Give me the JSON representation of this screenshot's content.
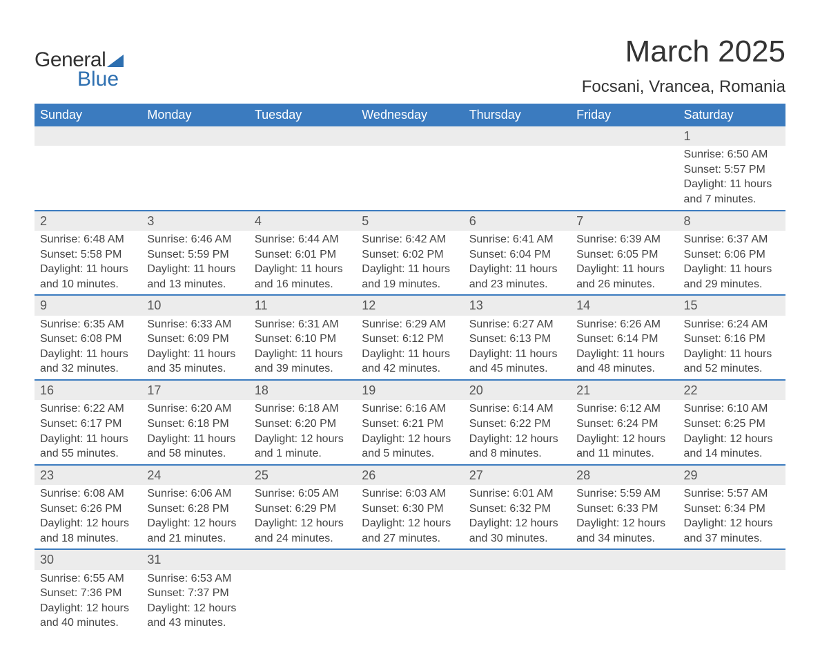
{
  "brand": {
    "word1": "General",
    "word2": "Blue"
  },
  "title": "March 2025",
  "location": "Focsani, Vrancea, Romania",
  "colors": {
    "header_bg": "#3b7bbf",
    "header_text": "#ffffff",
    "daynum_bg": "#ececec",
    "border": "#3b7bbf",
    "text": "#444444",
    "brand_blue": "#2d6fb0"
  },
  "day_headers": [
    "Sunday",
    "Monday",
    "Tuesday",
    "Wednesday",
    "Thursday",
    "Friday",
    "Saturday"
  ],
  "weeks": [
    {
      "nums": [
        "",
        "",
        "",
        "",
        "",
        "",
        "1"
      ],
      "sunrise": [
        "",
        "",
        "",
        "",
        "",
        "",
        "Sunrise: 6:50 AM"
      ],
      "sunset": [
        "",
        "",
        "",
        "",
        "",
        "",
        "Sunset: 5:57 PM"
      ],
      "day1": [
        "",
        "",
        "",
        "",
        "",
        "",
        "Daylight: 11 hours"
      ],
      "day2": [
        "",
        "",
        "",
        "",
        "",
        "",
        "and 7 minutes."
      ]
    },
    {
      "nums": [
        "2",
        "3",
        "4",
        "5",
        "6",
        "7",
        "8"
      ],
      "sunrise": [
        "Sunrise: 6:48 AM",
        "Sunrise: 6:46 AM",
        "Sunrise: 6:44 AM",
        "Sunrise: 6:42 AM",
        "Sunrise: 6:41 AM",
        "Sunrise: 6:39 AM",
        "Sunrise: 6:37 AM"
      ],
      "sunset": [
        "Sunset: 5:58 PM",
        "Sunset: 5:59 PM",
        "Sunset: 6:01 PM",
        "Sunset: 6:02 PM",
        "Sunset: 6:04 PM",
        "Sunset: 6:05 PM",
        "Sunset: 6:06 PM"
      ],
      "day1": [
        "Daylight: 11 hours",
        "Daylight: 11 hours",
        "Daylight: 11 hours",
        "Daylight: 11 hours",
        "Daylight: 11 hours",
        "Daylight: 11 hours",
        "Daylight: 11 hours"
      ],
      "day2": [
        "and 10 minutes.",
        "and 13 minutes.",
        "and 16 minutes.",
        "and 19 minutes.",
        "and 23 minutes.",
        "and 26 minutes.",
        "and 29 minutes."
      ]
    },
    {
      "nums": [
        "9",
        "10",
        "11",
        "12",
        "13",
        "14",
        "15"
      ],
      "sunrise": [
        "Sunrise: 6:35 AM",
        "Sunrise: 6:33 AM",
        "Sunrise: 6:31 AM",
        "Sunrise: 6:29 AM",
        "Sunrise: 6:27 AM",
        "Sunrise: 6:26 AM",
        "Sunrise: 6:24 AM"
      ],
      "sunset": [
        "Sunset: 6:08 PM",
        "Sunset: 6:09 PM",
        "Sunset: 6:10 PM",
        "Sunset: 6:12 PM",
        "Sunset: 6:13 PM",
        "Sunset: 6:14 PM",
        "Sunset: 6:16 PM"
      ],
      "day1": [
        "Daylight: 11 hours",
        "Daylight: 11 hours",
        "Daylight: 11 hours",
        "Daylight: 11 hours",
        "Daylight: 11 hours",
        "Daylight: 11 hours",
        "Daylight: 11 hours"
      ],
      "day2": [
        "and 32 minutes.",
        "and 35 minutes.",
        "and 39 minutes.",
        "and 42 minutes.",
        "and 45 minutes.",
        "and 48 minutes.",
        "and 52 minutes."
      ]
    },
    {
      "nums": [
        "16",
        "17",
        "18",
        "19",
        "20",
        "21",
        "22"
      ],
      "sunrise": [
        "Sunrise: 6:22 AM",
        "Sunrise: 6:20 AM",
        "Sunrise: 6:18 AM",
        "Sunrise: 6:16 AM",
        "Sunrise: 6:14 AM",
        "Sunrise: 6:12 AM",
        "Sunrise: 6:10 AM"
      ],
      "sunset": [
        "Sunset: 6:17 PM",
        "Sunset: 6:18 PM",
        "Sunset: 6:20 PM",
        "Sunset: 6:21 PM",
        "Sunset: 6:22 PM",
        "Sunset: 6:24 PM",
        "Sunset: 6:25 PM"
      ],
      "day1": [
        "Daylight: 11 hours",
        "Daylight: 11 hours",
        "Daylight: 12 hours",
        "Daylight: 12 hours",
        "Daylight: 12 hours",
        "Daylight: 12 hours",
        "Daylight: 12 hours"
      ],
      "day2": [
        "and 55 minutes.",
        "and 58 minutes.",
        "and 1 minute.",
        "and 5 minutes.",
        "and 8 minutes.",
        "and 11 minutes.",
        "and 14 minutes."
      ]
    },
    {
      "nums": [
        "23",
        "24",
        "25",
        "26",
        "27",
        "28",
        "29"
      ],
      "sunrise": [
        "Sunrise: 6:08 AM",
        "Sunrise: 6:06 AM",
        "Sunrise: 6:05 AM",
        "Sunrise: 6:03 AM",
        "Sunrise: 6:01 AM",
        "Sunrise: 5:59 AM",
        "Sunrise: 5:57 AM"
      ],
      "sunset": [
        "Sunset: 6:26 PM",
        "Sunset: 6:28 PM",
        "Sunset: 6:29 PM",
        "Sunset: 6:30 PM",
        "Sunset: 6:32 PM",
        "Sunset: 6:33 PM",
        "Sunset: 6:34 PM"
      ],
      "day1": [
        "Daylight: 12 hours",
        "Daylight: 12 hours",
        "Daylight: 12 hours",
        "Daylight: 12 hours",
        "Daylight: 12 hours",
        "Daylight: 12 hours",
        "Daylight: 12 hours"
      ],
      "day2": [
        "and 18 minutes.",
        "and 21 minutes.",
        "and 24 minutes.",
        "and 27 minutes.",
        "and 30 minutes.",
        "and 34 minutes.",
        "and 37 minutes."
      ]
    },
    {
      "nums": [
        "30",
        "31",
        "",
        "",
        "",
        "",
        ""
      ],
      "sunrise": [
        "Sunrise: 6:55 AM",
        "Sunrise: 6:53 AM",
        "",
        "",
        "",
        "",
        ""
      ],
      "sunset": [
        "Sunset: 7:36 PM",
        "Sunset: 7:37 PM",
        "",
        "",
        "",
        "",
        ""
      ],
      "day1": [
        "Daylight: 12 hours",
        "Daylight: 12 hours",
        "",
        "",
        "",
        "",
        ""
      ],
      "day2": [
        "and 40 minutes.",
        "and 43 minutes.",
        "",
        "",
        "",
        "",
        ""
      ]
    }
  ]
}
